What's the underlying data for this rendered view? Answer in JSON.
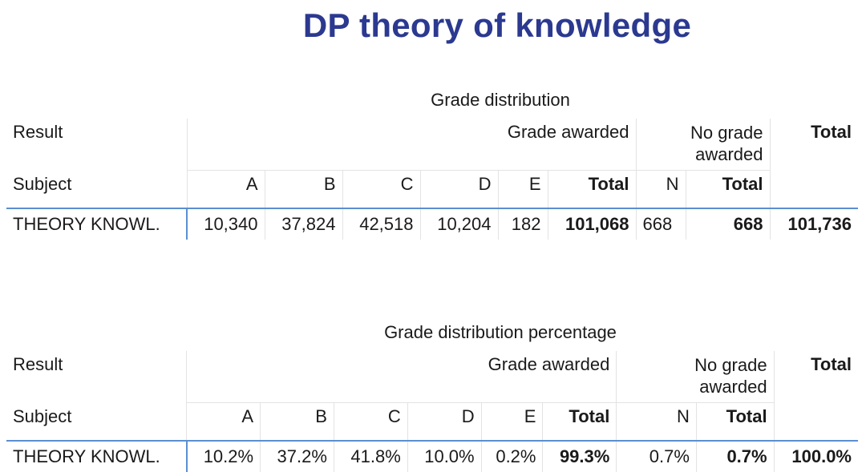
{
  "title": "DP theory of knowledge",
  "tables": [
    {
      "caption": "Grade distribution",
      "header_result": "Result",
      "header_grade_awarded": "Grade awarded",
      "header_no_grade_line1": "No grade",
      "header_no_grade_line2": "awarded",
      "header_total": "Total",
      "header_subject": "Subject",
      "columns": [
        "A",
        "B",
        "C",
        "D",
        "E",
        "Total",
        "N",
        "Total"
      ],
      "row": {
        "subject": "THEORY KNOWL.",
        "values": [
          "10,340",
          "37,824",
          "42,518",
          "10,204",
          "182",
          "101,068",
          "668",
          "668",
          "101,736"
        ]
      }
    },
    {
      "caption": "Grade distribution percentage",
      "header_result": "Result",
      "header_grade_awarded": "Grade awarded",
      "header_no_grade_line1": "No grade",
      "header_no_grade_line2": "awarded",
      "header_total": "Total",
      "header_subject": "Subject",
      "columns": [
        "A",
        "B",
        "C",
        "D",
        "E",
        "Total",
        "N",
        "Total"
      ],
      "row": {
        "subject": "THEORY KNOWL.",
        "values": [
          "10.2%",
          "37.2%",
          "41.8%",
          "10.0%",
          "0.2%",
          "99.3%",
          "0.7%",
          "0.7%",
          "100.0%"
        ]
      }
    }
  ]
}
